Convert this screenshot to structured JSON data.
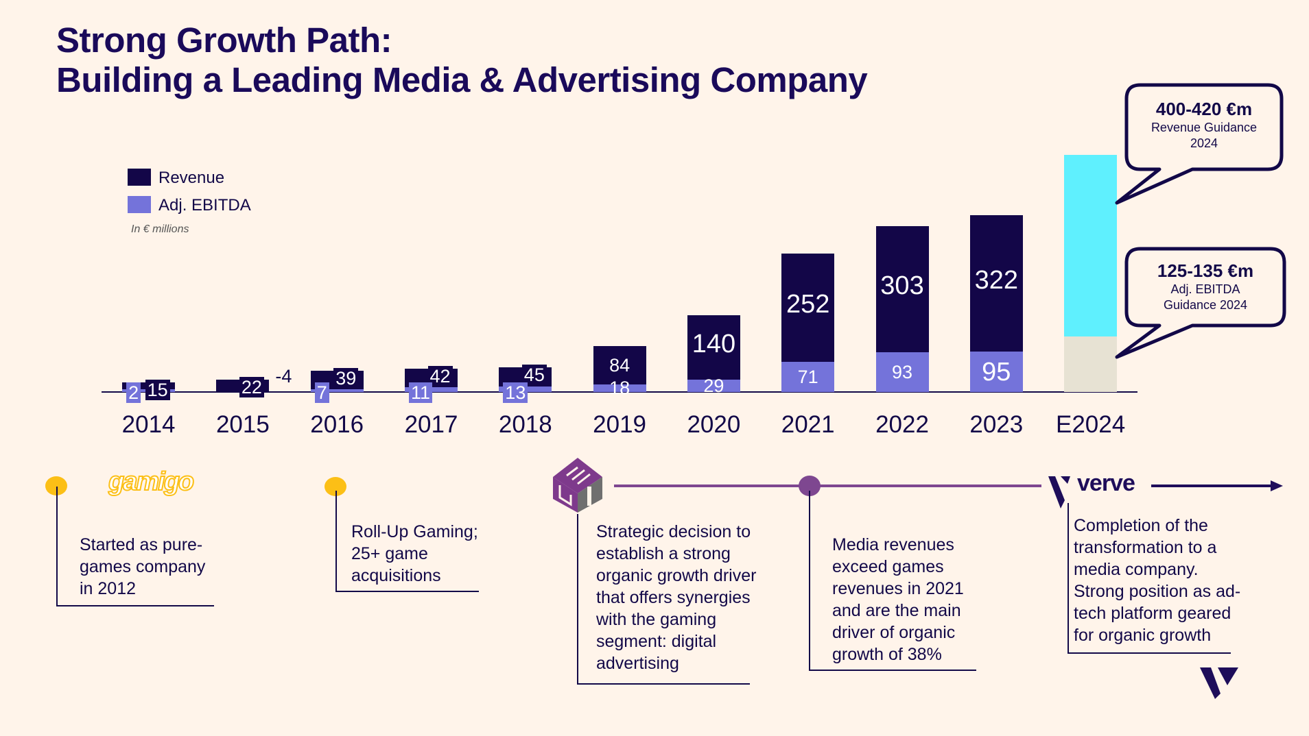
{
  "title_line1": "Strong Growth Path:",
  "title_line2": "Building a Leading Media & Advertising Company",
  "chart_data": {
    "type": "bar",
    "categories": [
      "2014",
      "2015",
      "2016",
      "2017",
      "2018",
      "2019",
      "2020",
      "2021",
      "2022",
      "2023",
      "E2024"
    ],
    "series": [
      {
        "name": "Revenue",
        "values": [
          15,
          22,
          39,
          42,
          45,
          84,
          140,
          252,
          303,
          322,
          null
        ]
      },
      {
        "name": "Adj. EBITDA",
        "values": [
          2,
          -4,
          7,
          11,
          13,
          18,
          29,
          71,
          93,
          95,
          null
        ]
      }
    ],
    "guidance": {
      "revenue_range": [
        400,
        420
      ],
      "ebitda_range": [
        125,
        135
      ]
    },
    "unit_note": "In € millions",
    "legend_position": "top-left",
    "colors": {
      "revenue": "#130648",
      "ebitda": "#7473da",
      "revenue_guidance": "#5ff0fe",
      "ebitda_guidance": "#e7e2d3"
    }
  },
  "legend": {
    "revenue": "Revenue",
    "ebitda": "Adj. EBITDA",
    "unit": "In € millions"
  },
  "callouts": {
    "revenue": {
      "value": "400-420 €m",
      "line1": "Revenue Guidance",
      "line2": "2024"
    },
    "ebitda": {
      "value": "125-135 €m",
      "line1": "Adj. EBITDA",
      "line2": "Guidance 2024"
    }
  },
  "timeline": {
    "logos": {
      "gamigo": "gamigo",
      "mgi": "MGI",
      "verve": "verve"
    },
    "items": [
      {
        "lines": [
          "Started as pure-",
          "games company",
          "in 2012"
        ]
      },
      {
        "lines": [
          "Roll-Up Gaming;",
          "25+ game",
          "acquisitions"
        ]
      },
      {
        "lines": [
          "Strategic decision to",
          "establish a strong",
          "organic growth driver",
          "that offers synergies",
          "with the gaming",
          "segment: digital",
          "advertising"
        ]
      },
      {
        "lines": [
          "Media revenues",
          "exceed games",
          "revenues in 2021",
          "and are the main",
          "driver of organic",
          "growth of 38%"
        ]
      },
      {
        "lines": [
          "Completion of the",
          "transformation to a",
          "media company.",
          "Strong position as ad-",
          "tech platform geared",
          "for organic growth"
        ]
      }
    ]
  }
}
